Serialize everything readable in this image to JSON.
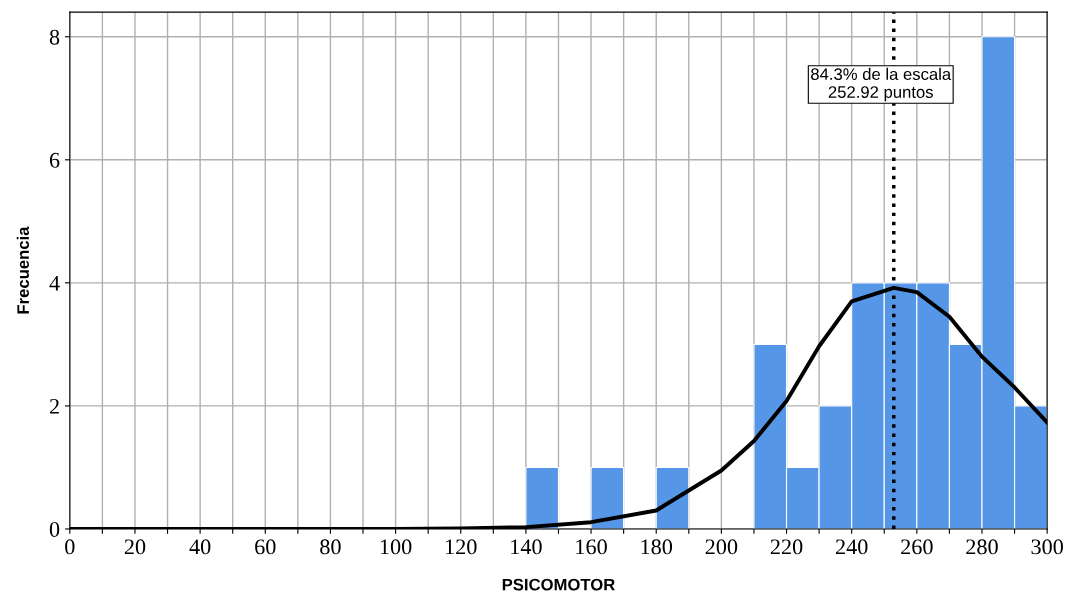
{
  "chart_data": {
    "type": "histogram",
    "xlabel": "PSICOMOTOR",
    "ylabel": "Frecuencia",
    "bins": [
      140,
      150,
      160,
      170,
      180,
      190,
      200,
      210,
      220,
      230,
      240,
      250,
      260,
      270,
      280,
      290,
      300
    ],
    "values": [
      1,
      0,
      1,
      0,
      1,
      0,
      0,
      3,
      1,
      2,
      4,
      4,
      4,
      3,
      8,
      2
    ],
    "color": "#5596e6",
    "series": [
      {
        "type": "line",
        "color": "#000000",
        "x": [
          0,
          100,
          120,
          140,
          160,
          180,
          200,
          210,
          220,
          230,
          240,
          252.92,
          260,
          270,
          280,
          290,
          300
        ],
        "values": [
          0,
          0,
          0.01,
          0.03,
          0.11,
          0.3,
          0.95,
          1.43,
          2.08,
          2.97,
          3.7,
          3.92,
          3.85,
          3.45,
          2.8,
          2.3,
          1.73
        ]
      }
    ],
    "ref_lines": [
      {
        "axis": "x",
        "value": 252.92,
        "label": "84.3% de la escala\n252.92 puntos",
        "line_style": "dotted",
        "color": "#000000"
      }
    ],
    "xlim": [
      0,
      300
    ],
    "xticks": [
      0,
      {
        "value": 10,
        "label": null
      },
      20,
      {
        "value": 30,
        "label": null
      },
      40,
      {
        "value": 50,
        "label": null
      },
      60,
      {
        "value": 70,
        "label": null
      },
      80,
      {
        "value": 90,
        "label": null
      },
      100,
      {
        "value": 110,
        "label": null
      },
      120,
      {
        "value": 130,
        "label": null
      },
      140,
      {
        "value": 150,
        "label": null
      },
      160,
      {
        "value": 170,
        "label": null
      },
      180,
      {
        "value": 190,
        "label": null
      },
      200,
      {
        "value": 210,
        "label": null
      },
      220,
      {
        "value": 230,
        "label": null
      },
      240,
      {
        "value": 250,
        "label": null
      },
      260,
      {
        "value": 270,
        "label": null
      },
      280,
      {
        "value": 290,
        "label": null
      },
      300
    ],
    "ylim": [
      0,
      8.4
    ],
    "yticks": [
      0,
      2,
      4,
      6,
      8
    ],
    "grid": true,
    "legend": false,
    "marker": "none"
  }
}
